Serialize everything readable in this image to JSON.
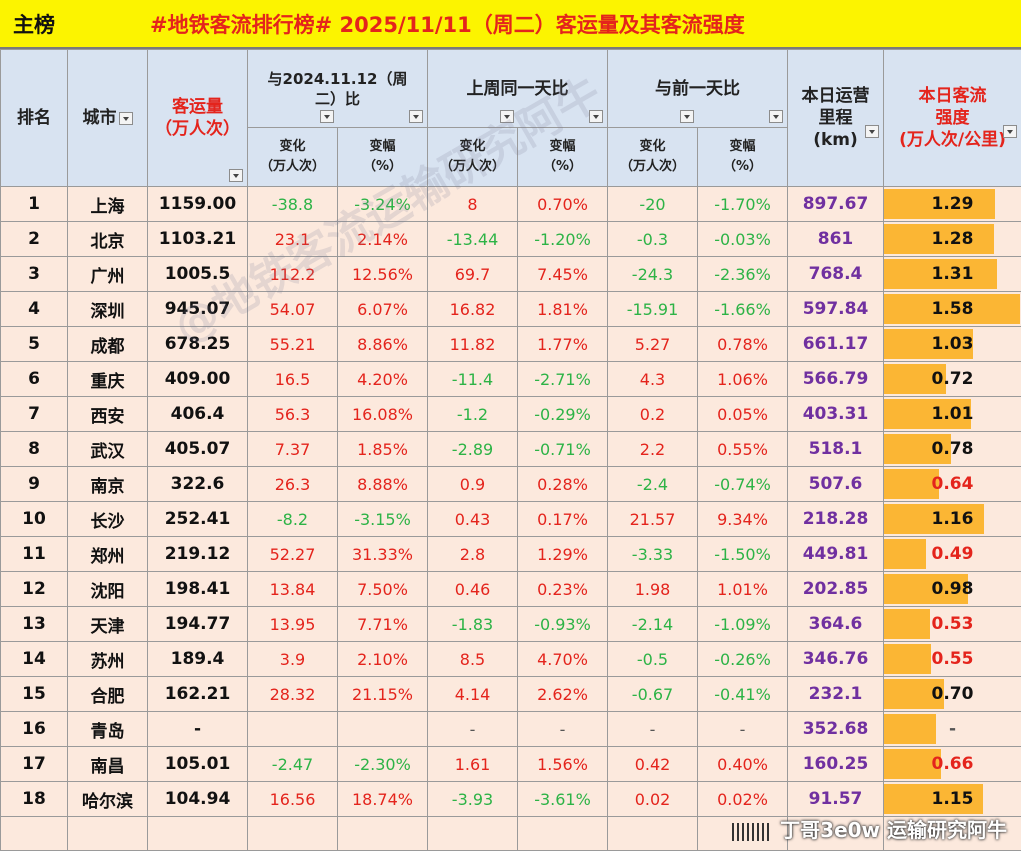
{
  "title_left": "主榜",
  "title_main": "#地铁客流排行榜# 2025/11/11（周二）客运量及其客流强度",
  "headers": {
    "rank": "排名",
    "city": "城市",
    "volume_l1": "客运量",
    "volume_l2": "（万人次）",
    "cmp_year_l1": "与2024.11.12（周",
    "cmp_year_l2": "二）比",
    "cmp_week": "上周同一天比",
    "cmp_prev": "与前一天比",
    "length_l1": "本日运营",
    "length_l2": "里程",
    "length_l3": "(km)",
    "intensity_l1": "本日客流",
    "intensity_l2": "强度",
    "intensity_l3": "(万人次/公里)",
    "chg_l1": "变化",
    "chg_l2": "（万人次）",
    "pct_l1": "变幅",
    "pct_l2": "（%）"
  },
  "rows": [
    {
      "rank": "1",
      "city": "上海",
      "volume": "1159.00",
      "yoy_chg": "-38.8",
      "yoy_pct": "-3.24%",
      "wow_chg": "8",
      "wow_pct": "0.70%",
      "dod_chg": "-20",
      "dod_pct": "-1.70%",
      "length": "897.67",
      "intensity": "1.29"
    },
    {
      "rank": "2",
      "city": "北京",
      "volume": "1103.21",
      "yoy_chg": "23.1",
      "yoy_pct": "2.14%",
      "wow_chg": "-13.44",
      "wow_pct": "-1.20%",
      "dod_chg": "-0.3",
      "dod_pct": "-0.03%",
      "length": "861",
      "intensity": "1.28"
    },
    {
      "rank": "3",
      "city": "广州",
      "volume": "1005.5",
      "yoy_chg": "112.2",
      "yoy_pct": "12.56%",
      "wow_chg": "69.7",
      "wow_pct": "7.45%",
      "dod_chg": "-24.3",
      "dod_pct": "-2.36%",
      "length": "768.4",
      "intensity": "1.31"
    },
    {
      "rank": "4",
      "city": "深圳",
      "volume": "945.07",
      "yoy_chg": "54.07",
      "yoy_pct": "6.07%",
      "wow_chg": "16.82",
      "wow_pct": "1.81%",
      "dod_chg": "-15.91",
      "dod_pct": "-1.66%",
      "length": "597.84",
      "intensity": "1.58"
    },
    {
      "rank": "5",
      "city": "成都",
      "volume": "678.25",
      "yoy_chg": "55.21",
      "yoy_pct": "8.86%",
      "wow_chg": "11.82",
      "wow_pct": "1.77%",
      "dod_chg": "5.27",
      "dod_pct": "0.78%",
      "length": "661.17",
      "intensity": "1.03"
    },
    {
      "rank": "6",
      "city": "重庆",
      "volume": "409.00",
      "yoy_chg": "16.5",
      "yoy_pct": "4.20%",
      "wow_chg": "-11.4",
      "wow_pct": "-2.71%",
      "dod_chg": "4.3",
      "dod_pct": "1.06%",
      "length": "566.79",
      "intensity": "0.72"
    },
    {
      "rank": "7",
      "city": "西安",
      "volume": "406.4",
      "yoy_chg": "56.3",
      "yoy_pct": "16.08%",
      "wow_chg": "-1.2",
      "wow_pct": "-0.29%",
      "dod_chg": "0.2",
      "dod_pct": "0.05%",
      "length": "403.31",
      "intensity": "1.01"
    },
    {
      "rank": "8",
      "city": "武汉",
      "volume": "405.07",
      "yoy_chg": "7.37",
      "yoy_pct": "1.85%",
      "wow_chg": "-2.89",
      "wow_pct": "-0.71%",
      "dod_chg": "2.2",
      "dod_pct": "0.55%",
      "length": "518.1",
      "intensity": "0.78"
    },
    {
      "rank": "9",
      "city": "南京",
      "volume": "322.6",
      "yoy_chg": "26.3",
      "yoy_pct": "8.88%",
      "wow_chg": "0.9",
      "wow_pct": "0.28%",
      "dod_chg": "-2.4",
      "dod_pct": "-0.74%",
      "length": "507.6",
      "intensity": "0.64"
    },
    {
      "rank": "10",
      "city": "长沙",
      "volume": "252.41",
      "yoy_chg": "-8.2",
      "yoy_pct": "-3.15%",
      "wow_chg": "0.43",
      "wow_pct": "0.17%",
      "dod_chg": "21.57",
      "dod_pct": "9.34%",
      "length": "218.28",
      "intensity": "1.16"
    },
    {
      "rank": "11",
      "city": "郑州",
      "volume": "219.12",
      "yoy_chg": "52.27",
      "yoy_pct": "31.33%",
      "wow_chg": "2.8",
      "wow_pct": "1.29%",
      "dod_chg": "-3.33",
      "dod_pct": "-1.50%",
      "length": "449.81",
      "intensity": "0.49"
    },
    {
      "rank": "12",
      "city": "沈阳",
      "volume": "198.41",
      "yoy_chg": "13.84",
      "yoy_pct": "7.50%",
      "wow_chg": "0.46",
      "wow_pct": "0.23%",
      "dod_chg": "1.98",
      "dod_pct": "1.01%",
      "length": "202.85",
      "intensity": "0.98"
    },
    {
      "rank": "13",
      "city": "天津",
      "volume": "194.77",
      "yoy_chg": "13.95",
      "yoy_pct": "7.71%",
      "wow_chg": "-1.83",
      "wow_pct": "-0.93%",
      "dod_chg": "-2.14",
      "dod_pct": "-1.09%",
      "length": "364.6",
      "intensity": "0.53"
    },
    {
      "rank": "14",
      "city": "苏州",
      "volume": "189.4",
      "yoy_chg": "3.9",
      "yoy_pct": "2.10%",
      "wow_chg": "8.5",
      "wow_pct": "4.70%",
      "dod_chg": "-0.5",
      "dod_pct": "-0.26%",
      "length": "346.76",
      "intensity": "0.55"
    },
    {
      "rank": "15",
      "city": "合肥",
      "volume": "162.21",
      "yoy_chg": "28.32",
      "yoy_pct": "21.15%",
      "wow_chg": "4.14",
      "wow_pct": "2.62%",
      "dod_chg": "-0.67",
      "dod_pct": "-0.41%",
      "length": "232.1",
      "intensity": "0.70"
    },
    {
      "rank": "16",
      "city": "青岛",
      "volume": "-",
      "yoy_chg": "",
      "yoy_pct": "",
      "wow_chg": "-",
      "wow_pct": "-",
      "dod_chg": "-",
      "dod_pct": "-",
      "length": "352.68",
      "intensity": "-",
      "intensity_bar": 0.38
    },
    {
      "rank": "17",
      "city": "南昌",
      "volume": "105.01",
      "yoy_chg": "-2.47",
      "yoy_pct": "-2.30%",
      "wow_chg": "1.61",
      "wow_pct": "1.56%",
      "dod_chg": "0.42",
      "dod_pct": "0.40%",
      "length": "160.25",
      "intensity": "0.66"
    },
    {
      "rank": "18",
      "city": "哈尔滨",
      "volume": "104.94",
      "yoy_chg": "16.56",
      "yoy_pct": "18.74%",
      "wow_chg": "-3.93",
      "wow_pct": "-3.61%",
      "dod_chg": "0.02",
      "dod_pct": "0.02%",
      "length": "91.57",
      "intensity": "1.15"
    }
  ],
  "intensity_max": 1.58,
  "intensity_red_threshold": 0.7,
  "colors": {
    "title_bg": "#fcf400",
    "header_bg": "#d8e3f1",
    "row_bg": "#fce9dd",
    "positive": "#e4241c",
    "negative": "#2db346",
    "length_text": "#7030a0",
    "bar_fill": "#fbb634"
  },
  "watermark": "@地铁客流运输研究阿牛",
  "footer_watermark": "丁哥3e0w 运输研究阿牛"
}
